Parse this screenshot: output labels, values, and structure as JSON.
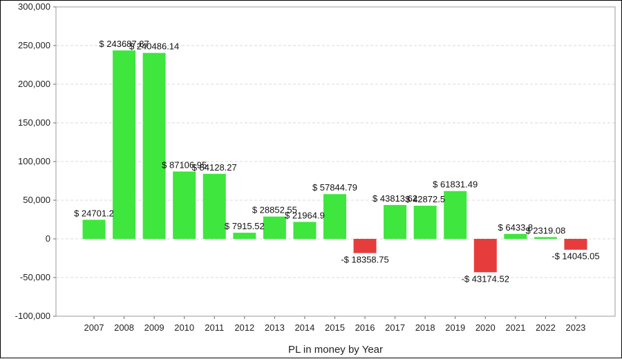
{
  "chart_data": {
    "type": "bar",
    "title": "",
    "xlabel": "PL in money by Year",
    "ylabel": "",
    "ylim": [
      -100000,
      300000
    ],
    "yticks": [
      -100000,
      -50000,
      0,
      50000,
      100000,
      150000,
      200000,
      250000,
      300000
    ],
    "ytick_labels": [
      "-100,000",
      "-50,000",
      "0",
      "50,000",
      "100,000",
      "150,000",
      "200,000",
      "250,000",
      "300,000"
    ],
    "grid": true,
    "categories": [
      "2007",
      "2008",
      "2009",
      "2010",
      "2011",
      "2012",
      "2013",
      "2014",
      "2015",
      "2016",
      "2017",
      "2018",
      "2019",
      "2020",
      "2021",
      "2022",
      "2023"
    ],
    "values": [
      24701.2,
      243687.87,
      240486.14,
      87106.95,
      84128.27,
      7915.52,
      28852.55,
      21964.9,
      57844.79,
      -18358.75,
      43813.62,
      42872.5,
      61831.49,
      -43174.52,
      6433.8,
      2319.08,
      -14045.05
    ],
    "data_labels": [
      "$ 24701.2",
      "$ 243687.87",
      "$ 240486.14",
      "$ 87106.95",
      "$ 84128.27",
      "$ 7915.52",
      "$ 28852.55",
      "$ 21964.9",
      "$ 57844.79",
      "-$ 18358.75",
      "$ 43813.62",
      "$ 42872.5",
      "$ 61831.49",
      "-$ 43174.52",
      "$ 6433.8",
      "$ 2319.08",
      "-$ 14045.05"
    ],
    "colors": {
      "positive": "#3ee63e",
      "negative": "#e63c3c",
      "grid": "#d9d9d9",
      "plot_border": "#9a9a9a"
    }
  }
}
